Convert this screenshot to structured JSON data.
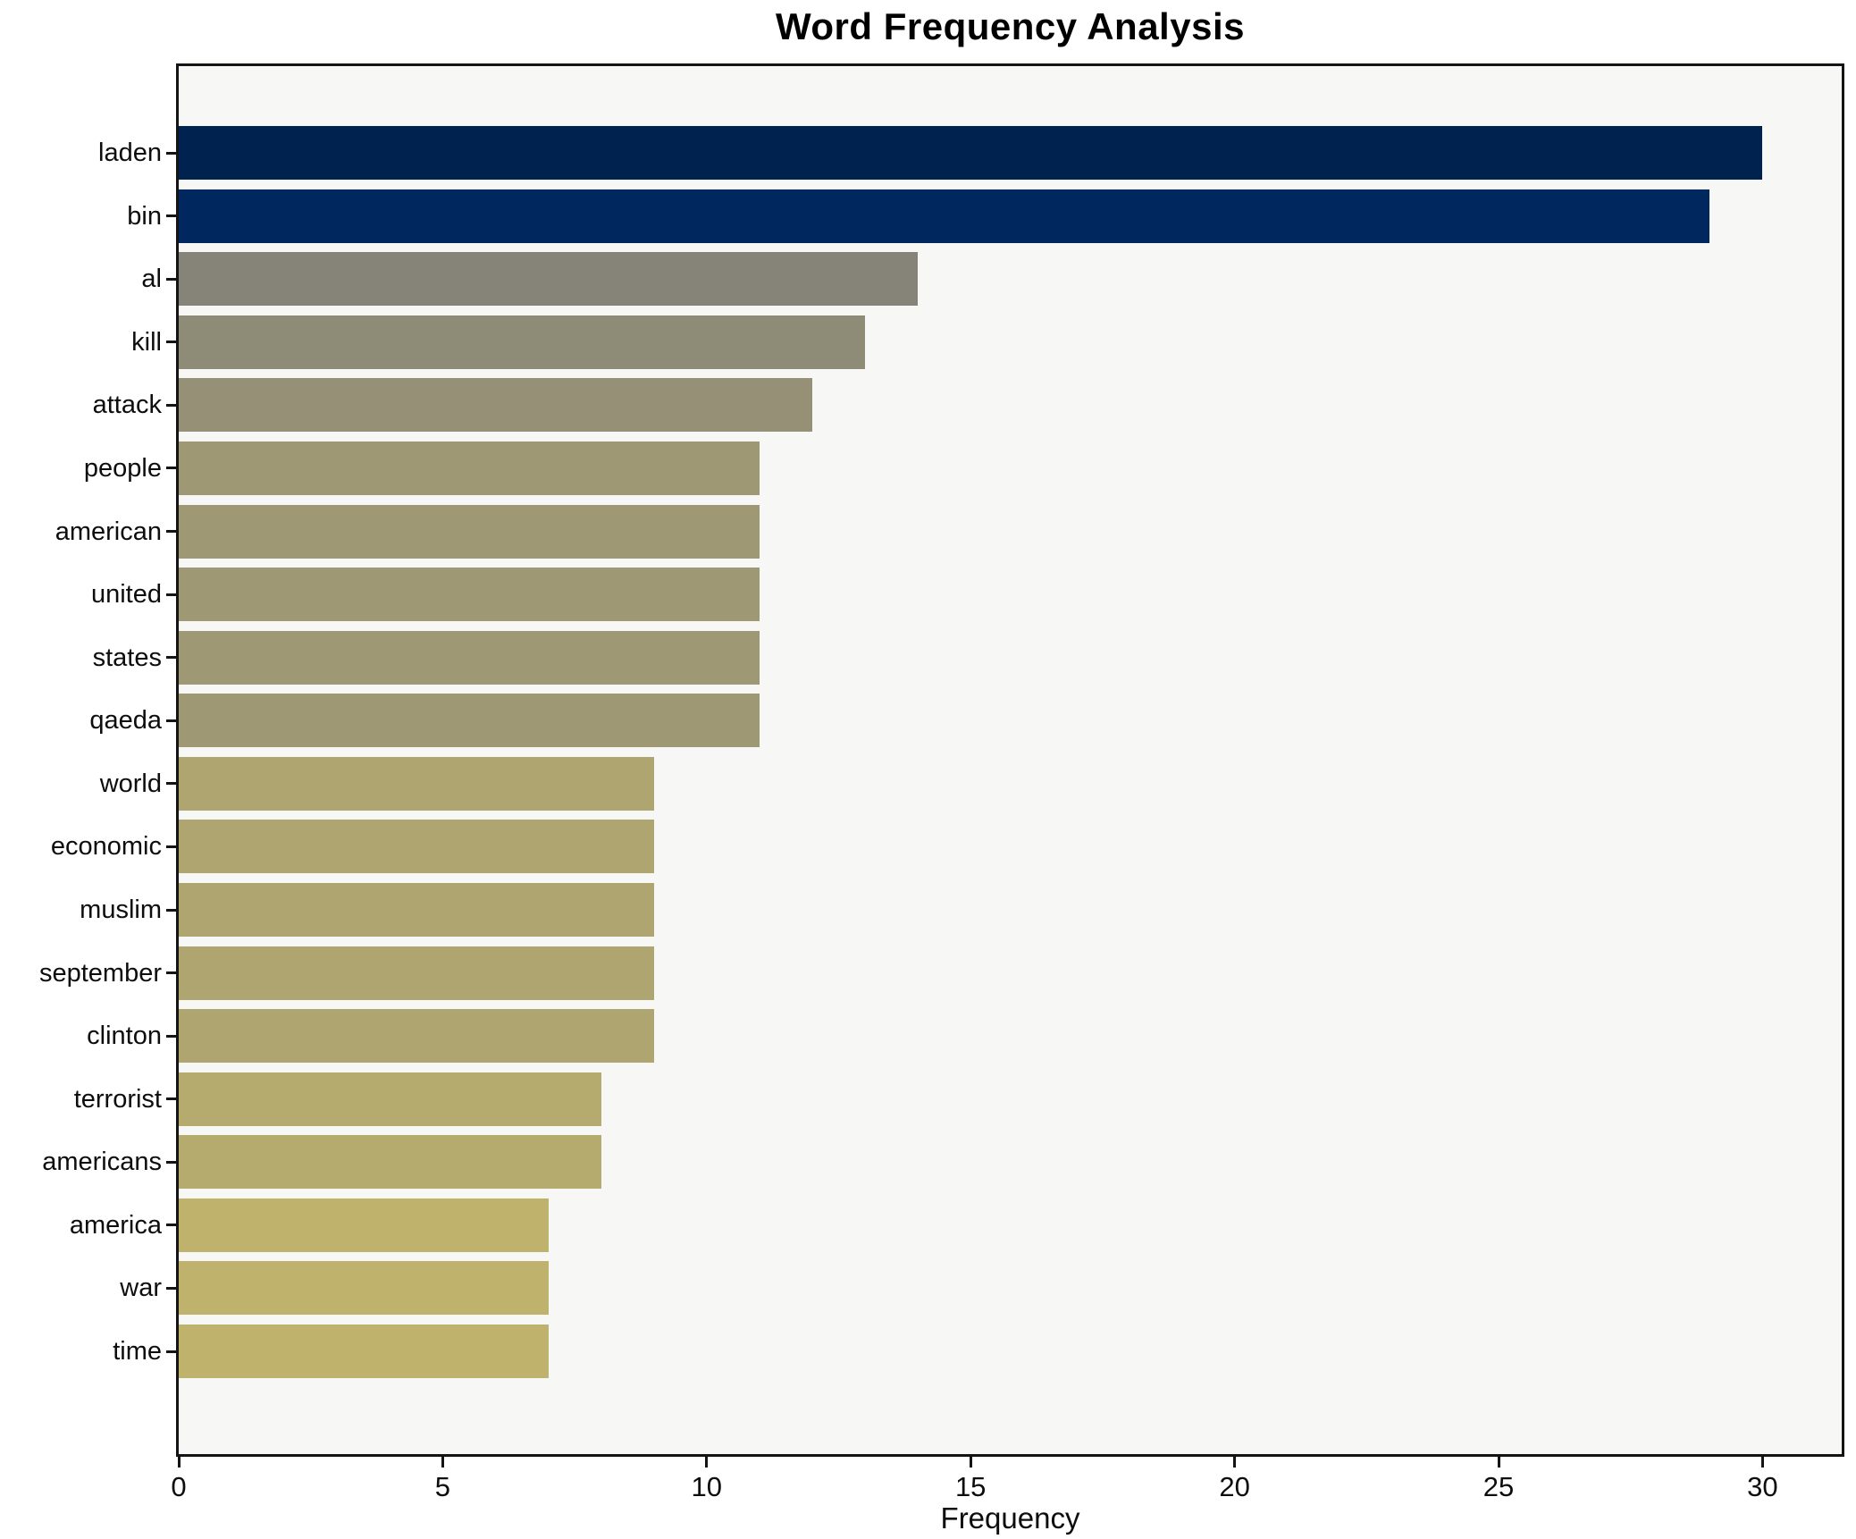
{
  "chart_data": {
    "type": "bar",
    "orientation": "horizontal",
    "title": "Word Frequency Analysis",
    "xlabel": "Frequency",
    "ylabel": "",
    "xlim": [
      0,
      31.5
    ],
    "xticks": [
      0,
      5,
      10,
      15,
      20,
      25,
      30
    ],
    "grid": false,
    "legend": "none",
    "categories": [
      "laden",
      "bin",
      "al",
      "kill",
      "attack",
      "people",
      "american",
      "united",
      "states",
      "qaeda",
      "world",
      "economic",
      "muslim",
      "september",
      "clinton",
      "terrorist",
      "americans",
      "america",
      "war",
      "time"
    ],
    "values": [
      30,
      29,
      14,
      13,
      12,
      11,
      11,
      11,
      11,
      11,
      9,
      9,
      9,
      9,
      9,
      8,
      8,
      7,
      7,
      7
    ],
    "bar_colors": [
      "#00224e",
      "#00285f",
      "#868478",
      "#8e8b77",
      "#969176",
      "#9e9875",
      "#9e9875",
      "#9e9875",
      "#9e9875",
      "#9e9875",
      "#aea571",
      "#aea571",
      "#aea571",
      "#aea571",
      "#aea571",
      "#b6ab6f",
      "#b6ab6f",
      "#beb26c",
      "#beb26c",
      "#beb26c"
    ]
  },
  "colors": {
    "figure_bg": "#ffffff",
    "plot_bg": "#f7f7f5",
    "spine": "#141414",
    "text": "#0d0d0d"
  }
}
